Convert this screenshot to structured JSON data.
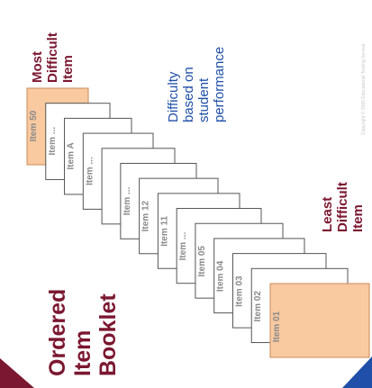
{
  "title": {
    "lines": [
      "Ordered",
      "Item",
      "Booklet"
    ]
  },
  "most_label": {
    "lines": [
      "Most",
      "Difficult",
      "Item"
    ]
  },
  "least_label": {
    "lines": [
      "Least",
      "Difficult",
      "Item"
    ]
  },
  "difficulty_note": {
    "lines": [
      "Difficulty",
      "based on",
      "student",
      "performance"
    ]
  },
  "copyright": "Copyright © 2006 Educational Testing Service",
  "pages": [
    {
      "label": "Item  50",
      "highlight": true
    },
    {
      "label": "Item  ...",
      "highlight": false
    },
    {
      "label": "Item  A",
      "highlight": false
    },
    {
      "label": "Item  ...",
      "highlight": false
    },
    {
      "label": "",
      "highlight": false
    },
    {
      "label": "Item  ...",
      "highlight": false
    },
    {
      "label": "Item  12",
      "highlight": false
    },
    {
      "label": "Item  11",
      "highlight": false
    },
    {
      "label": "Item  ...",
      "highlight": false
    },
    {
      "label": "Item  05",
      "highlight": false
    },
    {
      "label": "Item  04",
      "highlight": false
    },
    {
      "label": "Item  03",
      "highlight": false
    },
    {
      "label": "Item  02",
      "highlight": false
    },
    {
      "label": "Item  01",
      "highlight": true
    }
  ],
  "colors": {
    "highlight_fill": "#f9c9a0",
    "highlight_stroke": "#c98a5a",
    "page_fill": "#ffffff",
    "page_stroke": "#555555",
    "title": "#7b1730",
    "note": "#1f4fa8",
    "corner_left": "#7b1730",
    "corner_right": "#1f4fa8"
  }
}
